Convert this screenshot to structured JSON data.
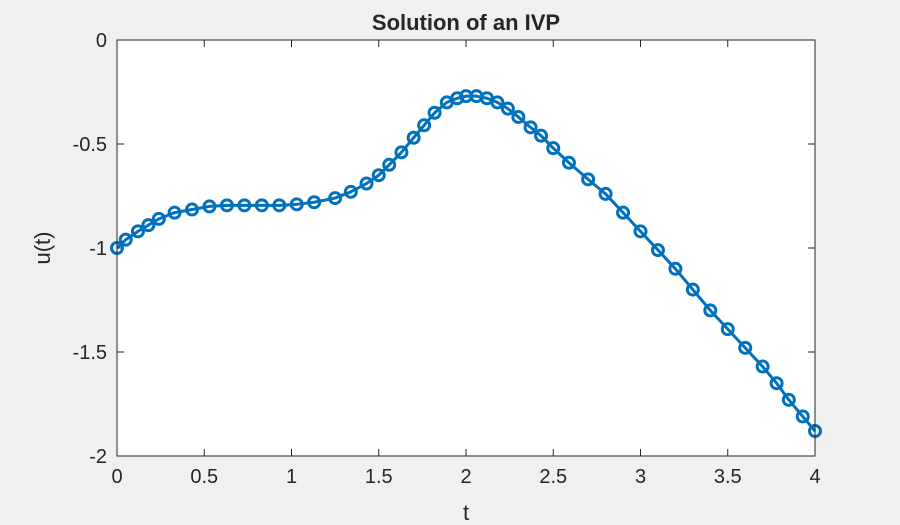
{
  "chart_data": {
    "type": "line",
    "title": "Solution of an IVP",
    "xlabel": "t",
    "ylabel": "u(t)",
    "xlim": [
      0,
      4
    ],
    "ylim": [
      -2,
      0
    ],
    "xticks": [
      0,
      0.5,
      1,
      1.5,
      2,
      2.5,
      3,
      3.5,
      4
    ],
    "xtick_labels": [
      "0",
      "0.5",
      "1",
      "1.5",
      "2",
      "2.5",
      "3",
      "3.5",
      "4"
    ],
    "yticks": [
      0,
      -0.5,
      -1,
      -1.5,
      -2
    ],
    "ytick_labels": [
      "0",
      "-0.5",
      "-1",
      "-1.5",
      "-2"
    ],
    "grid": false,
    "series": [
      {
        "color": "#0072BD",
        "marker": "circle",
        "x": [
          0,
          0.05,
          0.12,
          0.18,
          0.24,
          0.33,
          0.43,
          0.53,
          0.63,
          0.73,
          0.83,
          0.93,
          1.03,
          1.13,
          1.25,
          1.34,
          1.43,
          1.5,
          1.56,
          1.63,
          1.7,
          1.76,
          1.82,
          1.89,
          1.95,
          2.0,
          2.06,
          2.12,
          2.18,
          2.24,
          2.3,
          2.37,
          2.43,
          2.5,
          2.59,
          2.7,
          2.8,
          2.9,
          3.0,
          3.1,
          3.2,
          3.3,
          3.4,
          3.5,
          3.6,
          3.7,
          3.78,
          3.85,
          3.93,
          4.0
        ],
        "y": [
          -1.0,
          -0.96,
          -0.92,
          -0.89,
          -0.86,
          -0.83,
          -0.815,
          -0.8,
          -0.795,
          -0.795,
          -0.795,
          -0.795,
          -0.79,
          -0.78,
          -0.76,
          -0.73,
          -0.69,
          -0.65,
          -0.6,
          -0.54,
          -0.47,
          -0.41,
          -0.35,
          -0.3,
          -0.28,
          -0.27,
          -0.27,
          -0.28,
          -0.3,
          -0.33,
          -0.37,
          -0.42,
          -0.46,
          -0.52,
          -0.59,
          -0.67,
          -0.74,
          -0.83,
          -0.92,
          -1.01,
          -1.1,
          -1.2,
          -1.3,
          -1.39,
          -1.48,
          -1.57,
          -1.65,
          -1.73,
          -1.81,
          -1.88
        ]
      }
    ]
  }
}
